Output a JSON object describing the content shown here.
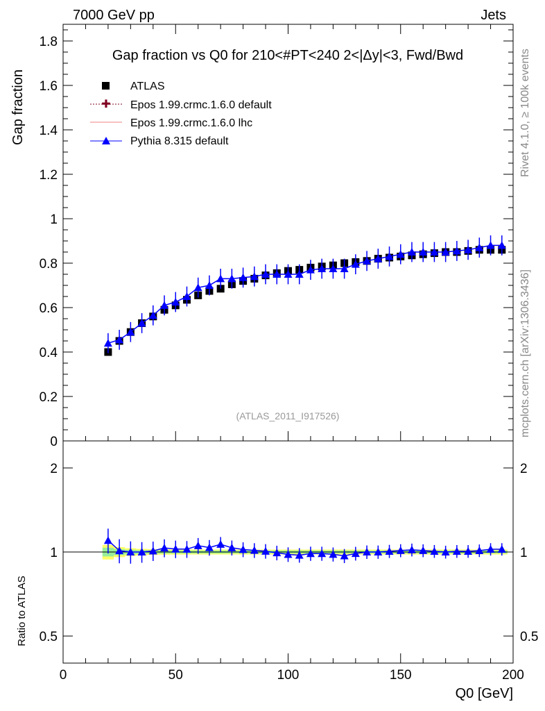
{
  "header": {
    "left": "7000 GeV pp",
    "right": "Jets"
  },
  "side": {
    "rivet": "Rivet 4.1.0, ≥ 100k events",
    "mcplots": "mcplots.cern.ch [arXiv:1306.3436]"
  },
  "chart_data": [
    {
      "type": "scatter",
      "title": "Gap fraction vs Q0 for 210<#PT<240  2<|Δy|<3, Fwd/Bwd",
      "ylabel": "Gap fraction",
      "xlabel": "Q0 [GeV]",
      "xlim": [
        0,
        200
      ],
      "ylim": [
        0,
        1.875
      ],
      "yticks": [
        "0",
        "0.2",
        "0.4",
        "0.6",
        "0.8",
        "1",
        "1.2",
        "1.4",
        "1.6",
        "1.8"
      ],
      "xticks": [
        "0",
        "50",
        "100",
        "150",
        "200"
      ],
      "analysis": "(ATLAS_2011_I917526)",
      "legend": [
        "ATLAS",
        "Epos 1.99.crmc.1.6.0 default",
        "Epos 1.99.crmc.1.6.0 lhc",
        "Pythia 8.315 default"
      ],
      "x": [
        20,
        25,
        30,
        35,
        40,
        45,
        50,
        55,
        60,
        65,
        70,
        75,
        80,
        85,
        90,
        95,
        100,
        105,
        110,
        115,
        120,
        125,
        130,
        135,
        140,
        145,
        150,
        155,
        160,
        165,
        170,
        175,
        180,
        185,
        190,
        195
      ],
      "series": [
        {
          "name": "ATLAS",
          "color": "#000000",
          "values": [
            0.4,
            0.45,
            0.49,
            0.53,
            0.56,
            0.59,
            0.61,
            0.635,
            0.655,
            0.675,
            0.685,
            0.705,
            0.72,
            0.73,
            0.745,
            0.755,
            0.765,
            0.77,
            0.78,
            0.785,
            0.79,
            0.8,
            0.805,
            0.81,
            0.82,
            0.825,
            0.83,
            0.835,
            0.84,
            0.845,
            0.85,
            0.85,
            0.855,
            0.86,
            0.86,
            0.86
          ]
        },
        {
          "name": "Pythia 8.315 default",
          "color": "#0000ff",
          "error": 0.045,
          "values": [
            0.44,
            0.455,
            0.49,
            0.53,
            0.565,
            0.61,
            0.625,
            0.65,
            0.69,
            0.7,
            0.73,
            0.73,
            0.735,
            0.74,
            0.75,
            0.75,
            0.75,
            0.75,
            0.77,
            0.775,
            0.775,
            0.775,
            0.795,
            0.81,
            0.82,
            0.83,
            0.84,
            0.85,
            0.85,
            0.85,
            0.85,
            0.855,
            0.86,
            0.87,
            0.88,
            0.88
          ]
        }
      ]
    },
    {
      "type": "line",
      "ylabel": "Ratio to ATLAS",
      "yscale": "log",
      "ylim": [
        0.4,
        2.5
      ],
      "yticks": [
        "0.5",
        "1",
        "2"
      ],
      "reference": 1
    }
  ]
}
